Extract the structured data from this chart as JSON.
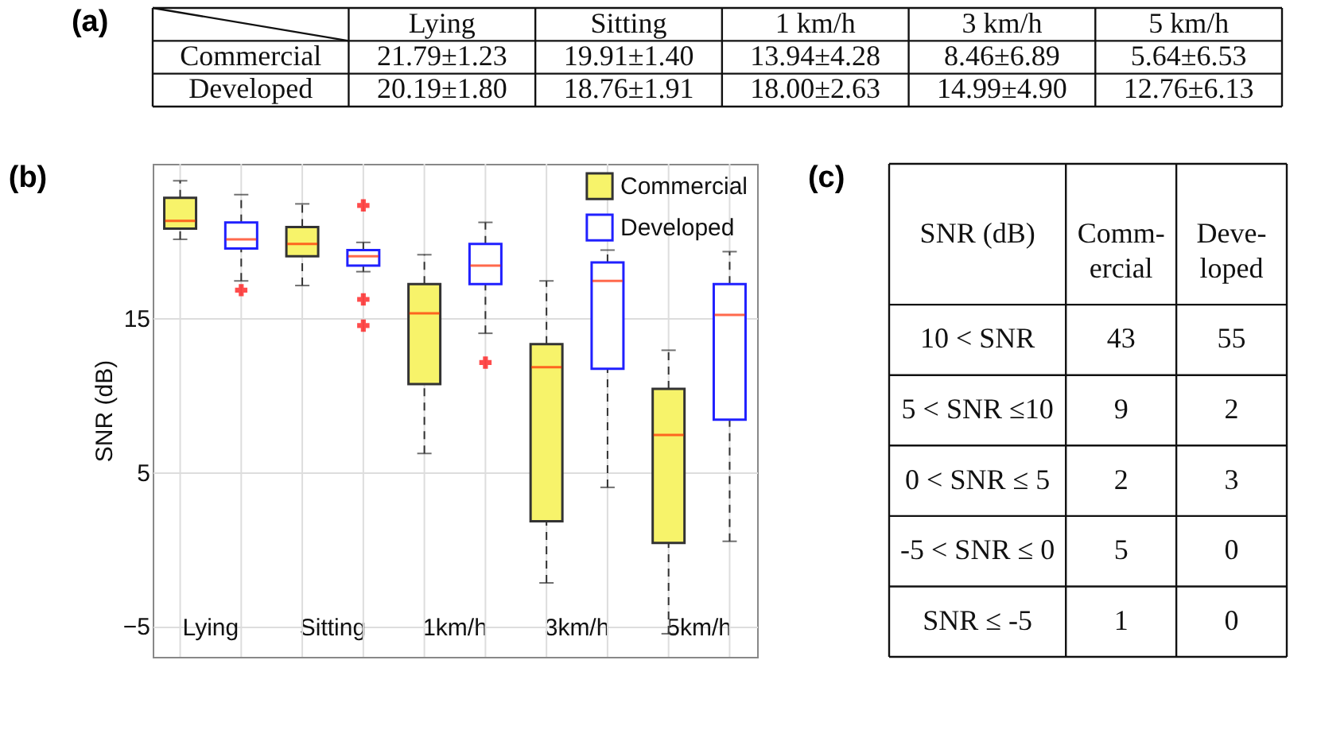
{
  "chart_data": [
    {
      "type": "other",
      "title": "(a)",
      "categories": [
        "Lying",
        "Sitting",
        "1 km/h",
        "3 km/h",
        "5 km/h"
      ],
      "y_categories": [
        "Commercial",
        "Developed"
      ],
      "cell_labels": [
        [
          "21.79±1.23",
          "19.91±1.40",
          "13.94±4.28",
          "8.46±6.89",
          "5.64±6.53"
        ],
        [
          "20.19±1.80",
          "18.76±1.91",
          "18.00±2.63",
          "14.99±4.90",
          "12.76±6.13"
        ]
      ]
    },
    {
      "type": "box",
      "title": "(b)",
      "ylabel": "SNR (dB)",
      "categories": [
        "Lying",
        "Sitting",
        "1km/h",
        "3km/h",
        "5km/h"
      ],
      "ylim": [
        -7,
        25
      ],
      "yticks": [
        -5,
        5,
        15
      ],
      "grid": true,
      "legend": "top right",
      "series": [
        {
          "name": "Commercial",
          "color": "#f7f36a",
          "boxes": [
            {
              "low": 20.1,
              "q1": 20.8,
              "median": 21.3,
              "q3": 22.8,
              "high": 23.9
            },
            {
              "low": 17.1,
              "q1": 19.0,
              "median": 19.8,
              "q3": 20.9,
              "high": 22.4
            },
            {
              "low": 6.2,
              "q1": 10.7,
              "median": 15.3,
              "q3": 17.2,
              "high": 19.1
            },
            {
              "low": -2.2,
              "q1": 1.8,
              "median": 11.8,
              "q3": 13.3,
              "high": 17.4
            },
            {
              "low": -5.5,
              "q1": 0.4,
              "median": 7.4,
              "q3": 10.4,
              "high": 12.9
            }
          ]
        },
        {
          "name": "Developed",
          "color": "#2020ff",
          "boxes": [
            {
              "low": 17.4,
              "q1": 19.5,
              "median": 20.1,
              "q3": 21.2,
              "high": 23.0,
              "outliers": [
                16.8
              ]
            },
            {
              "low": 18.0,
              "q1": 18.4,
              "median": 19.0,
              "q3": 19.4,
              "high": 19.9,
              "outliers": [
                22.3,
                16.2,
                14.5
              ]
            },
            {
              "low": 14.0,
              "q1": 17.2,
              "median": 18.4,
              "q3": 19.8,
              "high": 21.2,
              "outliers": [
                12.1
              ]
            },
            {
              "low": 4.0,
              "q1": 11.7,
              "median": 17.4,
              "q3": 18.6,
              "high": 19.4
            },
            {
              "low": 0.5,
              "q1": 8.4,
              "median": 15.2,
              "q3": 17.2,
              "high": 19.3
            }
          ]
        }
      ]
    },
    {
      "type": "other",
      "title": "(c)",
      "ylabel": "SNR (dB)",
      "categories": [
        "Comm-\nercial",
        "Deve-\nloped"
      ],
      "y_categories": [
        "10 < SNR",
        "5 < SNR ≤10",
        "0 < SNR ≤ 5",
        "-5 < SNR ≤ 0",
        "SNR ≤ -5"
      ],
      "cell_labels": [
        [
          "43",
          "55"
        ],
        [
          "9",
          "2"
        ],
        [
          "2",
          "3"
        ],
        [
          "5",
          "0"
        ],
        [
          "1",
          "0"
        ]
      ]
    }
  ]
}
